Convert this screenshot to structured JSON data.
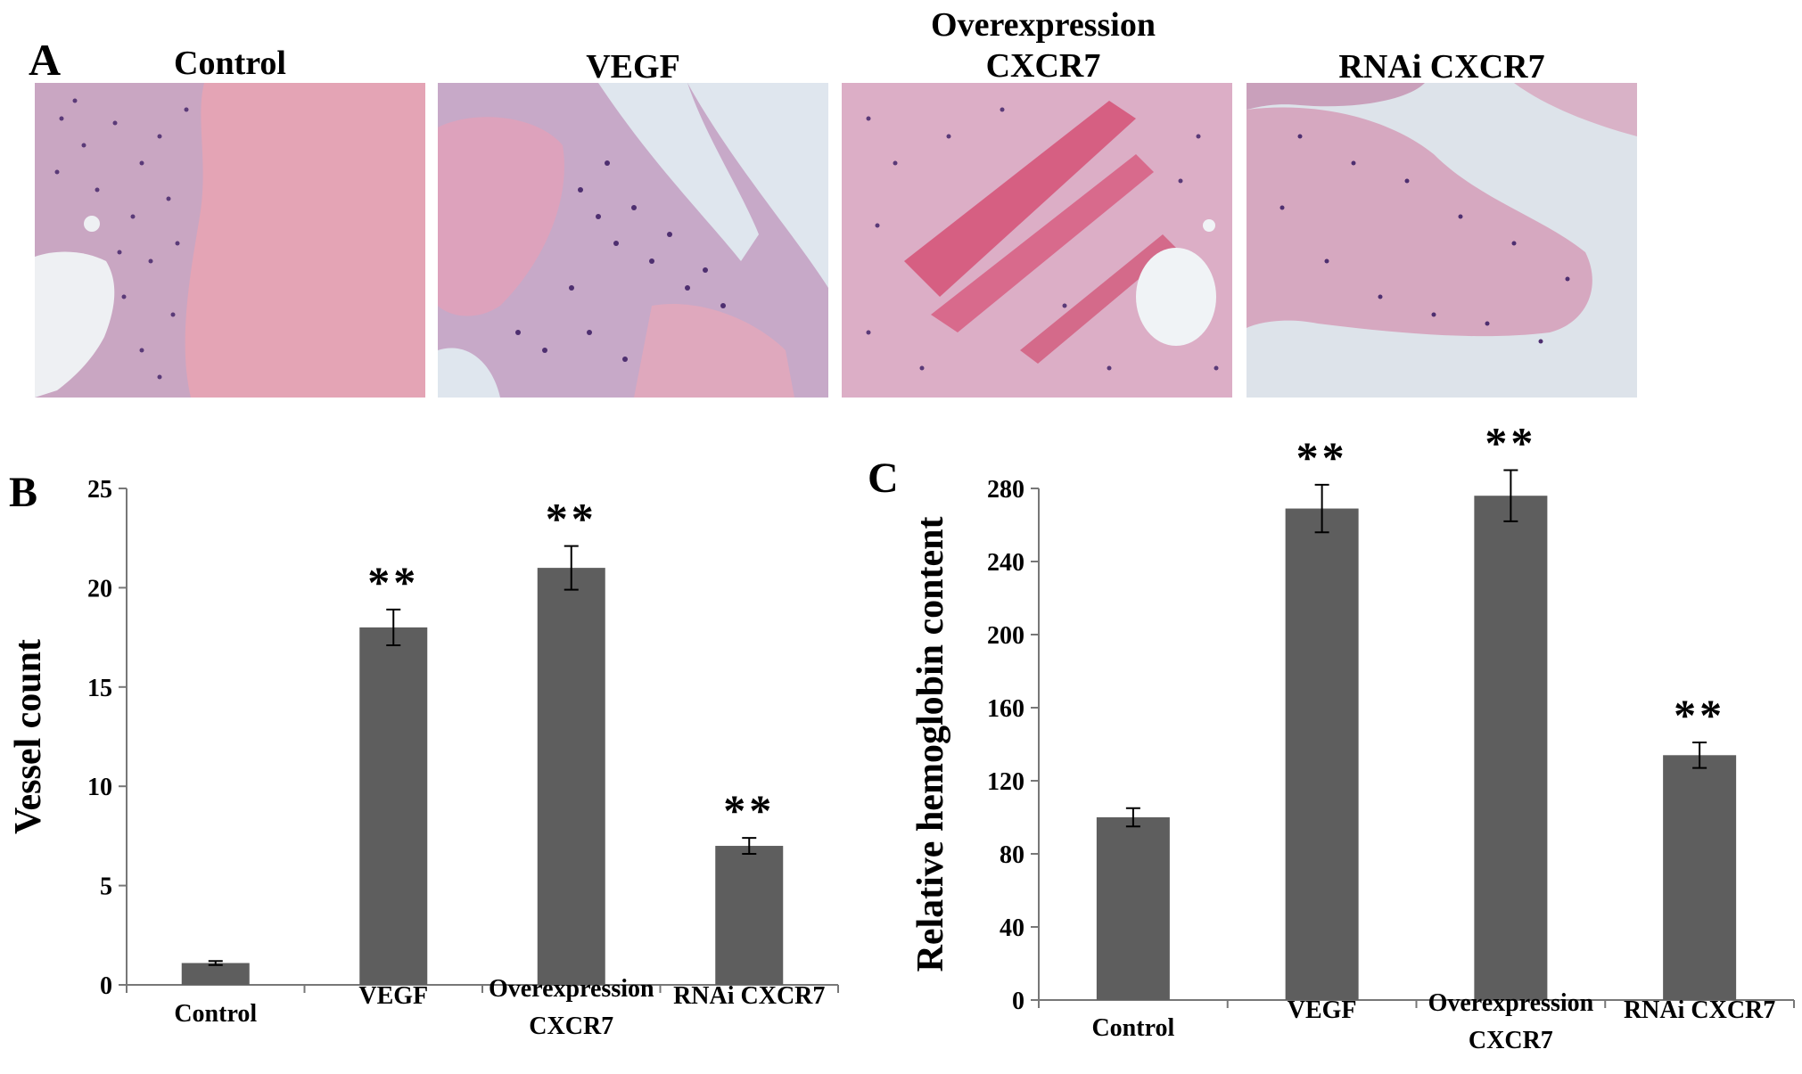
{
  "panel_a": {
    "letter": "A",
    "titles": [
      "Control",
      "VEGF",
      "Overexpression CXCR7",
      "RNAi CXCR7"
    ]
  },
  "chart_data": [
    {
      "type": "bar",
      "panel": "B",
      "categories": [
        "Control",
        "VEGF",
        "Overexpression CXCR7",
        "RNAi CXCR7"
      ],
      "values": [
        1.1,
        18.0,
        21.0,
        7.0
      ],
      "errors": [
        0.1,
        0.9,
        1.1,
        0.4
      ],
      "annotations": [
        "",
        "**",
        "**",
        "**"
      ],
      "ylabel": "Vessel count",
      "ylim": [
        0,
        25
      ],
      "yticks": [
        0,
        5,
        10,
        15,
        20,
        25
      ],
      "bar_color": "#5e5e5e",
      "grid": false
    },
    {
      "type": "bar",
      "panel": "C",
      "categories": [
        "Control",
        "VEGF",
        "Overexpression CXCR7",
        "RNAi CXCR7"
      ],
      "values": [
        100,
        269,
        276,
        134
      ],
      "errors": [
        5,
        13,
        14,
        7
      ],
      "annotations": [
        "",
        "**",
        "**",
        "**"
      ],
      "ylabel": "Relative hemoglobin content",
      "ylim": [
        0,
        280
      ],
      "yticks": [
        0,
        40,
        80,
        120,
        160,
        200,
        240,
        280
      ],
      "bar_color": "#5e5e5e",
      "grid": false
    }
  ]
}
